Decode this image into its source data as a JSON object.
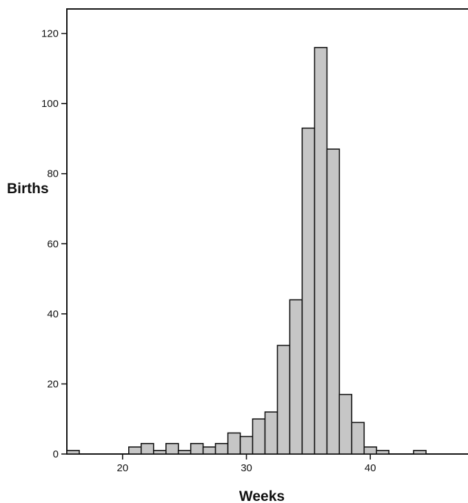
{
  "chart_data": {
    "type": "bar",
    "title": "",
    "xlabel": "Weeks",
    "ylabel": "Births",
    "xlim": [
      15.5,
      48
    ],
    "ylim": [
      0,
      127
    ],
    "grid": false,
    "legend": "none",
    "bar_color": "#c6c6c6",
    "edge_color": "#111111",
    "x_ticks": [
      20,
      30,
      40
    ],
    "y_ticks": [
      0,
      20,
      40,
      60,
      80,
      100,
      120
    ],
    "bins": [
      {
        "x": 16,
        "value": 1
      },
      {
        "x": 17,
        "value": 0
      },
      {
        "x": 18,
        "value": 0
      },
      {
        "x": 19,
        "value": 0
      },
      {
        "x": 20,
        "value": 0
      },
      {
        "x": 21,
        "value": 2
      },
      {
        "x": 22,
        "value": 3
      },
      {
        "x": 23,
        "value": 1
      },
      {
        "x": 24,
        "value": 3
      },
      {
        "x": 25,
        "value": 1
      },
      {
        "x": 26,
        "value": 3
      },
      {
        "x": 27,
        "value": 2
      },
      {
        "x": 28,
        "value": 3
      },
      {
        "x": 29,
        "value": 6
      },
      {
        "x": 30,
        "value": 5
      },
      {
        "x": 31,
        "value": 10
      },
      {
        "x": 32,
        "value": 12
      },
      {
        "x": 33,
        "value": 31
      },
      {
        "x": 34,
        "value": 44
      },
      {
        "x": 35,
        "value": 93
      },
      {
        "x": 36,
        "value": 116
      },
      {
        "x": 37,
        "value": 87
      },
      {
        "x": 38,
        "value": 17
      },
      {
        "x": 39,
        "value": 9
      },
      {
        "x": 40,
        "value": 2
      },
      {
        "x": 41,
        "value": 1
      },
      {
        "x": 42,
        "value": 0
      },
      {
        "x": 43,
        "value": 0
      },
      {
        "x": 44,
        "value": 1
      }
    ]
  }
}
